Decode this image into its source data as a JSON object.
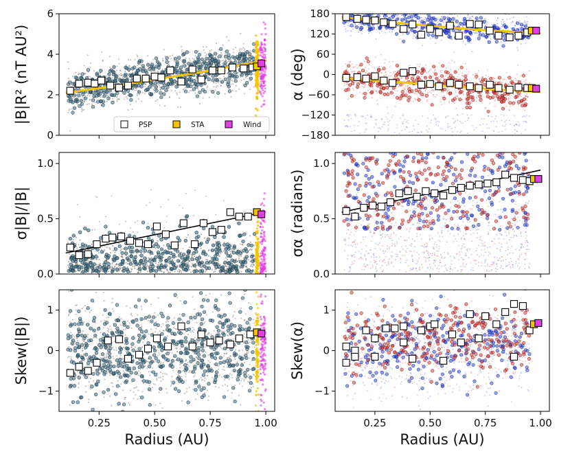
{
  "figure_title": "",
  "colors": {
    "psp_marker": "#ffffff",
    "sta_marker": "#f5c400",
    "wind_marker": "#e040e0",
    "fit_magnitude": "#f5c400",
    "fit_linear": "#000000",
    "scatter_grey": "#555555",
    "scatter_teal": "#3f6e82",
    "scatter_blue": "#2a3fd6",
    "scatter_red": "#d8302a",
    "sta_band": "#f5c400",
    "wind_band": "#e040e0"
  },
  "legend": {
    "entries": [
      {
        "label": "PSP",
        "color": "#ffffff"
      },
      {
        "label": "STA",
        "color": "#f5c400"
      },
      {
        "label": "Wind",
        "color": "#e040e0"
      }
    ]
  },
  "chart_data": [
    {
      "id": "b-magnitude",
      "type": "scatter",
      "ylabel": "|B|R² (nT AU²)",
      "xlabel": "",
      "xlim": [
        0.07,
        1.04
      ],
      "ylim": [
        0,
        6
      ],
      "yticks": [
        0,
        2,
        4,
        6
      ],
      "ytick_labels": [
        "0",
        "2",
        "4",
        "6"
      ],
      "xticks": [
        0.25,
        0.5,
        0.75,
        1.0
      ],
      "xtick_labels": [
        "",
        "",
        "",
        ""
      ],
      "show_legend": true,
      "cloud": {
        "style": "grey",
        "center": [
          2.2,
          3.6
        ],
        "spread": 0.6
      },
      "fit": {
        "kind": "curve",
        "color": "#f5c400",
        "x": [
          0.1,
          0.3,
          0.5,
          0.7,
          0.9,
          1.0
        ],
        "y": [
          2.1,
          2.4,
          2.75,
          3.1,
          3.5,
          3.7
        ]
      },
      "series": [
        {
          "name": "PSP",
          "x": [
            0.12,
            0.16,
            0.2,
            0.23,
            0.26,
            0.3,
            0.34,
            0.38,
            0.42,
            0.46,
            0.5,
            0.53,
            0.57,
            0.62,
            0.67,
            0.71,
            0.76,
            0.8,
            0.85,
            0.9,
            0.94
          ],
          "y": [
            2.2,
            2.55,
            2.6,
            2.55,
            2.7,
            2.45,
            2.35,
            2.45,
            2.8,
            2.8,
            2.9,
            2.85,
            3.2,
            2.65,
            3.25,
            2.75,
            3.2,
            3.2,
            3.35,
            3.3,
            3.35
          ]
        },
        {
          "name": "STA",
          "x": [
            0.96
          ],
          "y": [
            3.4
          ]
        },
        {
          "name": "Wind",
          "x": [
            0.98
          ],
          "y": [
            3.55
          ]
        }
      ]
    },
    {
      "id": "alpha",
      "type": "scatter",
      "ylabel": "α (deg)",
      "xlabel": "",
      "xlim": [
        0.07,
        1.04
      ],
      "ylim": [
        -180,
        180
      ],
      "yticks": [
        -180,
        -120,
        -60,
        0,
        60,
        120,
        180
      ],
      "ytick_labels": [
        "−180",
        "−120",
        "−60",
        "0",
        "60",
        "120",
        "180"
      ],
      "xticks": [
        0.25,
        0.5,
        0.75,
        1.0
      ],
      "xtick_labels": [
        "",
        "",
        "",
        ""
      ],
      "show_legend": false,
      "cloud": {
        "style": "bluered-alpha"
      },
      "fit": {
        "kind": "twocurves",
        "color": "#f5c400",
        "upper": {
          "x": [
            0.1,
            0.4,
            0.7,
            1.0
          ],
          "y": [
            170,
            150,
            133,
            122
          ]
        },
        "lower": {
          "x": [
            0.1,
            0.4,
            0.7,
            1.0
          ],
          "y": [
            -10,
            -25,
            -40,
            -52
          ]
        }
      },
      "series": [
        {
          "name": "PSP-positive",
          "x": [
            0.12,
            0.17,
            0.21,
            0.25,
            0.29,
            0.33,
            0.38,
            0.42,
            0.46,
            0.5,
            0.54,
            0.59,
            0.63,
            0.68,
            0.72,
            0.77,
            0.81,
            0.86,
            0.9,
            0.94
          ],
          "y": [
            170,
            165,
            162,
            160,
            155,
            150,
            135,
            148,
            118,
            135,
            125,
            145,
            115,
            150,
            148,
            130,
            115,
            110,
            115,
            125
          ]
        },
        {
          "name": "PSP-negative",
          "x": [
            0.12,
            0.17,
            0.21,
            0.25,
            0.29,
            0.33,
            0.38,
            0.42,
            0.46,
            0.5,
            0.54,
            0.59,
            0.63,
            0.68,
            0.72,
            0.77,
            0.81,
            0.86,
            0.9,
            0.94
          ],
          "y": [
            -10,
            -8,
            -12,
            -5,
            -18,
            -25,
            5,
            10,
            -30,
            -28,
            -35,
            -25,
            -30,
            -35,
            -40,
            -30,
            -40,
            -45,
            -38,
            -40
          ]
        },
        {
          "name": "STA",
          "x": [
            0.96,
            0.96
          ],
          "y": [
            130,
            -40
          ]
        },
        {
          "name": "Wind",
          "x": [
            0.98,
            0.98
          ],
          "y": [
            130,
            -42
          ]
        }
      ]
    },
    {
      "id": "sigma-b",
      "type": "scatter",
      "ylabel": "σ|B|/|B|",
      "xlabel": "",
      "xlim": [
        0.07,
        1.04
      ],
      "ylim": [
        0,
        1.1
      ],
      "yticks": [
        0,
        0.5,
        1.0
      ],
      "ytick_labels": [
        "0.0",
        "0.5",
        "1.0"
      ],
      "xticks": [
        0.25,
        0.5,
        0.75,
        1.0
      ],
      "xtick_labels": [
        "",
        "",
        "",
        ""
      ],
      "show_legend": false,
      "cloud": {
        "style": "grey-low"
      },
      "fit": {
        "kind": "line",
        "color": "#000000",
        "x": [
          0.1,
          0.97
        ],
        "y": [
          0.19,
          0.55
        ]
      },
      "series": [
        {
          "name": "PSP",
          "x": [
            0.12,
            0.16,
            0.2,
            0.24,
            0.28,
            0.31,
            0.35,
            0.39,
            0.43,
            0.47,
            0.51,
            0.55,
            0.59,
            0.63,
            0.68,
            0.72,
            0.76,
            0.8,
            0.84,
            0.88,
            0.92
          ],
          "y": [
            0.24,
            0.17,
            0.18,
            0.27,
            0.32,
            0.33,
            0.34,
            0.3,
            0.28,
            0.27,
            0.43,
            0.36,
            0.26,
            0.46,
            0.27,
            0.46,
            0.38,
            0.4,
            0.56,
            0.52,
            0.52
          ]
        },
        {
          "name": "STA",
          "x": [
            0.96
          ],
          "y": [
            0.56
          ]
        },
        {
          "name": "Wind",
          "x": [
            0.98
          ],
          "y": [
            0.54
          ]
        }
      ]
    },
    {
      "id": "sigma-alpha",
      "type": "scatter",
      "ylabel": "σα (radians)",
      "xlabel": "",
      "xlim": [
        0.07,
        1.04
      ],
      "ylim": [
        0,
        1.1
      ],
      "yticks": [
        0,
        0.5,
        1.0
      ],
      "ytick_labels": [
        "0.0",
        "0.5",
        "1.0"
      ],
      "xticks": [
        0.25,
        0.5,
        0.75,
        1.0
      ],
      "xtick_labels": [
        "",
        "",
        "",
        ""
      ],
      "show_legend": false,
      "cloud": {
        "style": "bluered-sigma"
      },
      "fit": {
        "kind": "line",
        "color": "#000000",
        "x": [
          0.1,
          1.0
        ],
        "y": [
          0.56,
          0.94
        ]
      },
      "series": [
        {
          "name": "PSP",
          "x": [
            0.12,
            0.16,
            0.2,
            0.24,
            0.28,
            0.32,
            0.36,
            0.4,
            0.44,
            0.48,
            0.52,
            0.56,
            0.6,
            0.64,
            0.68,
            0.72,
            0.76,
            0.8,
            0.84,
            0.88,
            0.92,
            0.95
          ],
          "y": [
            0.57,
            0.52,
            0.6,
            0.62,
            0.61,
            0.65,
            0.73,
            0.75,
            0.7,
            0.75,
            0.73,
            0.71,
            0.76,
            0.78,
            0.8,
            0.81,
            0.82,
            0.83,
            0.9,
            0.87,
            0.85,
            0.84
          ]
        },
        {
          "name": "STA",
          "x": [
            0.97
          ],
          "y": [
            0.86
          ]
        },
        {
          "name": "Wind",
          "x": [
            0.99
          ],
          "y": [
            0.86
          ]
        }
      ]
    },
    {
      "id": "skew-b",
      "type": "scatter",
      "ylabel": "Skew(|B|)",
      "xlabel": "Radius (AU)",
      "xlim": [
        0.07,
        1.04
      ],
      "ylim": [
        -1.5,
        1.5
      ],
      "yticks": [
        -1,
        0,
        1
      ],
      "ytick_labels": [
        "−1",
        "0",
        "1"
      ],
      "xticks": [
        0.25,
        0.5,
        0.75,
        1.0
      ],
      "xtick_labels": [
        "0.25",
        "0.50",
        "0.75",
        "1.00"
      ],
      "show_legend": false,
      "cloud": {
        "style": "grey-wide"
      },
      "fit": null,
      "series": [
        {
          "name": "PSP",
          "x": [
            0.12,
            0.16,
            0.2,
            0.24,
            0.29,
            0.34,
            0.38,
            0.43,
            0.47,
            0.51,
            0.56,
            0.62,
            0.67,
            0.71,
            0.75,
            0.79,
            0.84,
            0.88,
            0.93
          ],
          "y": [
            -0.55,
            -0.4,
            -0.5,
            -0.3,
            0.25,
            0.28,
            -0.2,
            -0.1,
            0.05,
            0.3,
            0.1,
            0.6,
            0.1,
            0.4,
            0.2,
            0.25,
            0.15,
            0.3,
            0.4
          ]
        },
        {
          "name": "STA",
          "x": [
            0.96
          ],
          "y": [
            0.45
          ]
        },
        {
          "name": "Wind",
          "x": [
            0.98
          ],
          "y": [
            0.42
          ]
        }
      ]
    },
    {
      "id": "skew-alpha",
      "type": "scatter",
      "ylabel": "Skew(α)",
      "xlabel": "Radius (AU)",
      "xlim": [
        0.07,
        1.04
      ],
      "ylim": [
        -1.5,
        1.5
      ],
      "yticks": [
        -1,
        0,
        1
      ],
      "ytick_labels": [
        "−1",
        "0",
        "1"
      ],
      "xticks": [
        0.25,
        0.5,
        0.75,
        1.0
      ],
      "xtick_labels": [
        "0.25",
        "0.50",
        "0.75",
        "1.00"
      ],
      "show_legend": false,
      "cloud": {
        "style": "bluered-skew"
      },
      "fit": null,
      "series": [
        {
          "name": "PSP",
          "x": [
            0.12,
            0.12,
            0.16,
            0.16,
            0.21,
            0.25,
            0.25,
            0.3,
            0.34,
            0.38,
            0.38,
            0.42,
            0.46,
            0.5,
            0.52,
            0.56,
            0.6,
            0.64,
            0.68,
            0.72,
            0.75,
            0.8,
            0.84,
            0.88,
            0.88,
            0.92,
            0.95
          ],
          "y": [
            0.1,
            -0.3,
            0.0,
            -0.15,
            0.5,
            0.3,
            -0.15,
            0.55,
            0.55,
            0.2,
            0.6,
            -0.2,
            0.5,
            0.6,
            0.65,
            -0.25,
            0.4,
            0.2,
            0.9,
            0.3,
            0.85,
            0.65,
            0.95,
            1.15,
            -0.15,
            1.1,
            0.5
          ]
        },
        {
          "name": "STA",
          "x": [
            0.97
          ],
          "y": [
            0.65
          ]
        },
        {
          "name": "Wind",
          "x": [
            0.99
          ],
          "y": [
            0.68
          ]
        }
      ]
    }
  ]
}
